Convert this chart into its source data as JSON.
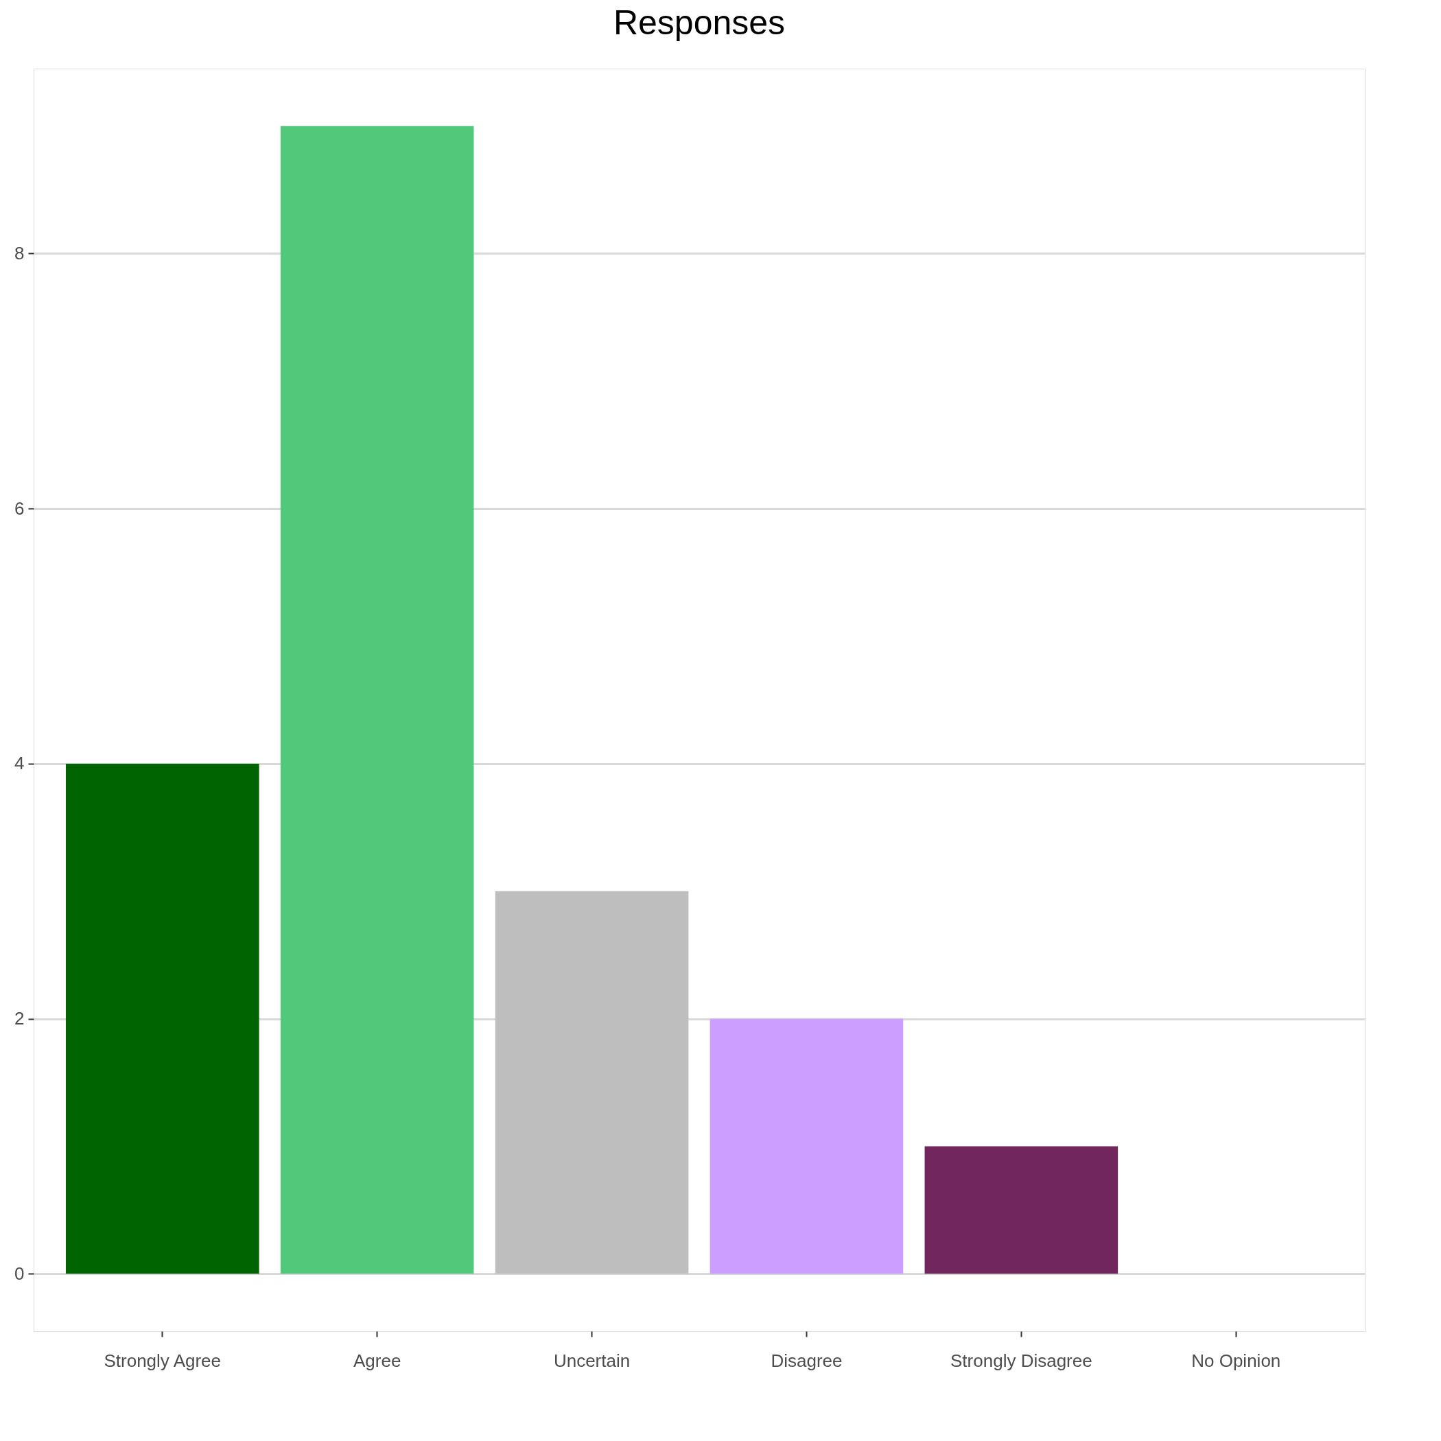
{
  "chart_data": {
    "type": "bar",
    "title": "Responses",
    "categories": [
      "Strongly Agree",
      "Agree",
      "Uncertain",
      "Disagree",
      "Strongly Disagree",
      "No Opinion"
    ],
    "values": [
      4,
      9,
      3,
      2,
      1,
      0
    ],
    "colors": [
      "#006400",
      "#52c97a",
      "#bebebe",
      "#cc9eff",
      "#71275e",
      "#ffffff"
    ],
    "ylim": [
      -0.45,
      9.45
    ],
    "yticks": [
      0,
      2,
      4,
      6,
      8
    ],
    "grid": "y",
    "legend": false
  }
}
